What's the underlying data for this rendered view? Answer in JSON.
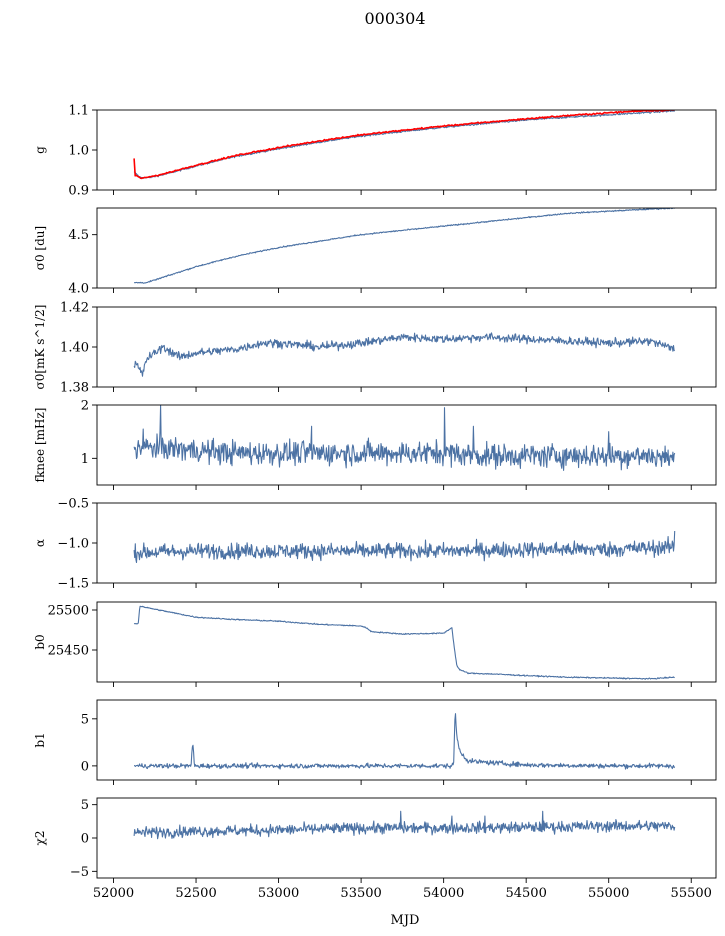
{
  "figure": {
    "title": "000304",
    "xlabel": "MJD",
    "xlim": [
      51900,
      55650
    ],
    "xticks": [
      52000,
      52500,
      53000,
      53500,
      54000,
      54500,
      55000,
      55500
    ],
    "xticklabels": [
      "52000",
      "52500",
      "53000",
      "53500",
      "54000",
      "54500",
      "55000",
      "55500"
    ],
    "x_start": 52125,
    "x_end": 55400,
    "line_color": "#4c72a4",
    "highlight_color": "#ff0000"
  },
  "chart_data": [
    {
      "type": "line",
      "key": "g",
      "ylabel": "g",
      "ylim": [
        0.9,
        1.1
      ],
      "yticks": [
        0.9,
        1.0,
        1.1
      ],
      "yticklabels": [
        "0.9",
        "1.0",
        "1.1"
      ],
      "series": [
        {
          "x": [
            52125,
            52160,
            52200,
            52300,
            52500,
            52750,
            53000,
            53250,
            53500,
            53750,
            54000,
            54250,
            54500,
            54750,
            55000,
            55200,
            55400
          ],
          "y": [
            0.945,
            0.932,
            0.93,
            0.938,
            0.96,
            0.985,
            1.003,
            1.02,
            1.035,
            1.046,
            1.057,
            1.066,
            1.075,
            1.082,
            1.088,
            1.093,
            1.098
          ]
        },
        {
          "color": "red",
          "x": [
            52125,
            52130,
            52140,
            52160,
            52200,
            52300,
            52500,
            52750,
            53000,
            53250,
            53500,
            53750,
            54000,
            54250,
            54500,
            54750,
            55000,
            55200,
            55400
          ],
          "y": [
            0.985,
            0.94,
            0.935,
            0.93,
            0.931,
            0.94,
            0.962,
            0.987,
            1.006,
            1.023,
            1.038,
            1.049,
            1.06,
            1.069,
            1.078,
            1.086,
            1.093,
            1.098,
            1.1
          ]
        }
      ]
    },
    {
      "type": "line",
      "key": "sigma0_du",
      "ylabel": "σ0 [du]",
      "ylim": [
        4.0,
        4.75
      ],
      "yticks": [
        4.0,
        4.5
      ],
      "yticklabels": [
        "4.0",
        "4.5"
      ],
      "series": [
        {
          "x": [
            52125,
            52200,
            52300,
            52500,
            52750,
            53000,
            53250,
            53500,
            53750,
            54000,
            54250,
            54500,
            54750,
            55000,
            55250,
            55400
          ],
          "y": [
            4.05,
            4.05,
            4.1,
            4.2,
            4.3,
            4.38,
            4.44,
            4.5,
            4.54,
            4.58,
            4.62,
            4.66,
            4.7,
            4.72,
            4.74,
            4.75
          ]
        }
      ]
    },
    {
      "type": "line",
      "key": "sigma0_mK",
      "ylabel": "σ0[mK s^1/2]",
      "ylim": [
        1.38,
        1.42
      ],
      "yticks": [
        1.38,
        1.4,
        1.42
      ],
      "yticklabels": [
        "1.38",
        "1.40",
        "1.42"
      ],
      "series": [
        {
          "x": [
            52125,
            52150,
            52175,
            52200,
            52300,
            52400,
            52500,
            52750,
            52900,
            53000,
            53250,
            53500,
            53750,
            54000,
            54250,
            54500,
            54750,
            55000,
            55250,
            55400
          ],
          "y": [
            1.392,
            1.39,
            1.386,
            1.394,
            1.4,
            1.395,
            1.397,
            1.399,
            1.402,
            1.402,
            1.4,
            1.402,
            1.405,
            1.404,
            1.405,
            1.404,
            1.403,
            1.402,
            1.403,
            1.399
          ]
        }
      ]
    },
    {
      "type": "line",
      "key": "fknee",
      "ylabel": "fknee [mHz]",
      "ylim": [
        0.5,
        2.0
      ],
      "yticks": [
        1,
        2
      ],
      "yticklabels": [
        "1",
        "2"
      ],
      "series": [
        {
          "x": [
            52125,
            52300,
            52500,
            52750,
            53000,
            53250,
            53500,
            53750,
            54000,
            54250,
            54500,
            54750,
            55000,
            55250,
            55400
          ],
          "y": [
            1.2,
            1.2,
            1.15,
            1.1,
            1.1,
            1.1,
            1.1,
            1.1,
            1.1,
            1.05,
            1.05,
            1.05,
            1.05,
            1.05,
            1.0
          ]
        }
      ]
    },
    {
      "type": "line",
      "key": "alpha",
      "ylabel": "α",
      "ylim": [
        -1.5,
        -0.5
      ],
      "yticks": [
        -1.5,
        -1.0,
        -0.5
      ],
      "yticklabels": [
        "−1.5",
        "−1.0",
        "−0.5"
      ],
      "series": [
        {
          "x": [
            52125,
            52500,
            53000,
            53500,
            54000,
            54500,
            55000,
            55400
          ],
          "y": [
            -1.12,
            -1.1,
            -1.1,
            -1.1,
            -1.1,
            -1.08,
            -1.08,
            -1.05
          ]
        }
      ]
    },
    {
      "type": "line",
      "key": "b0",
      "ylabel": "b0",
      "ylim": [
        25410,
        25510
      ],
      "yticks": [
        25450,
        25500
      ],
      "yticklabels": [
        "25450",
        "25500"
      ],
      "series": [
        {
          "x": [
            52125,
            52150,
            52160,
            52200,
            52300,
            52500,
            52750,
            53000,
            53250,
            53500,
            53540,
            53560,
            53750,
            54000,
            54050,
            54060,
            54080,
            54100,
            54150,
            54300,
            54500,
            54750,
            55000,
            55250,
            55400
          ],
          "y": [
            25483,
            25483,
            25505,
            25503,
            25499,
            25491,
            25488,
            25486,
            25482,
            25480,
            25477,
            25473,
            25470,
            25471,
            25478,
            25460,
            25430,
            25425,
            25421,
            25420,
            25418,
            25416,
            25415,
            25414,
            25416
          ]
        }
      ]
    },
    {
      "type": "line",
      "key": "b1",
      "ylabel": "b1",
      "ylim": [
        -1.5,
        7.0
      ],
      "yticks": [
        0,
        5
      ],
      "yticklabels": [
        "0",
        "5"
      ],
      "series": [
        {
          "x": [
            52125,
            52470,
            52480,
            52490,
            53000,
            53500,
            54000,
            54060,
            54070,
            54080,
            54100,
            54150,
            54500,
            55000,
            55400
          ],
          "y": [
            0.0,
            0.0,
            2.7,
            0.0,
            0.0,
            0.0,
            0.0,
            0.0,
            6.0,
            3.0,
            1.5,
            0.5,
            0.1,
            0.0,
            0.0
          ]
        }
      ]
    },
    {
      "type": "line",
      "key": "chi2",
      "ylabel": "χ2",
      "ylim": [
        -6.0,
        6.0
      ],
      "yticks": [
        -5,
        0,
        5
      ],
      "yticklabels": [
        "−5",
        "0",
        "5"
      ],
      "series": [
        {
          "x": [
            52125,
            52500,
            53000,
            53500,
            54000,
            54500,
            55000,
            55400
          ],
          "y": [
            0.8,
            1.0,
            1.2,
            1.5,
            1.5,
            1.6,
            1.8,
            1.8
          ]
        }
      ]
    }
  ]
}
